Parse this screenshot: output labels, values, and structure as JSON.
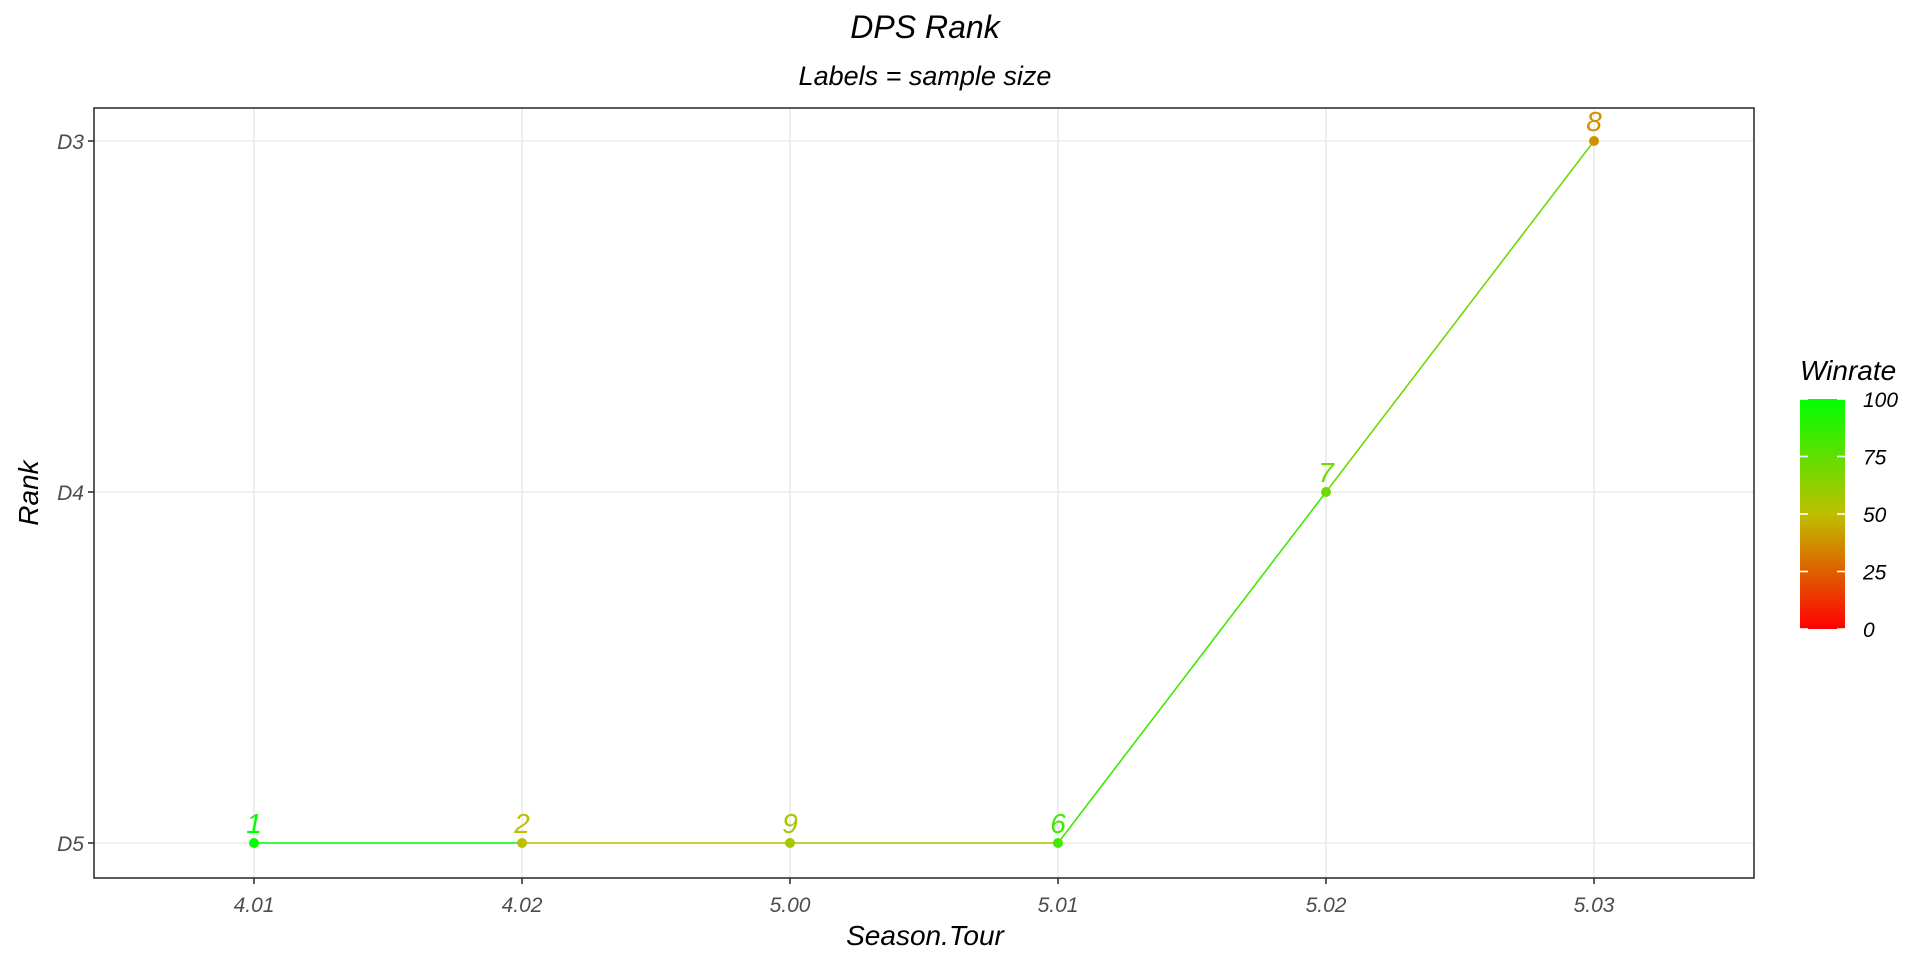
{
  "chart_data": {
    "type": "line",
    "title": "DPS Rank",
    "subtitle": "Labels = sample size",
    "xlabel": "Season.Tour",
    "ylabel": "Rank",
    "x_categories": [
      "4.01",
      "4.02",
      "5.00",
      "5.01",
      "5.02",
      "5.03"
    ],
    "y_categories": [
      "D5",
      "D4",
      "D3"
    ],
    "series": [
      {
        "name": "DPS Rank",
        "points": [
          {
            "x": "4.01",
            "y": "D5",
            "label": "1",
            "winrate": 100
          },
          {
            "x": "4.02",
            "y": "D5",
            "label": "2",
            "winrate": 50
          },
          {
            "x": "5.00",
            "y": "D5",
            "label": "9",
            "winrate": 56
          },
          {
            "x": "5.01",
            "y": "D5",
            "label": "6",
            "winrate": 83
          },
          {
            "x": "5.02",
            "y": "D4",
            "label": "7",
            "winrate": 71
          },
          {
            "x": "5.03",
            "y": "D3",
            "label": "8",
            "winrate": 38
          }
        ]
      }
    ],
    "legend": {
      "title": "Winrate",
      "position": "right",
      "ticks": [
        "100",
        "75",
        "50",
        "25",
        "0"
      ],
      "range": [
        0,
        100
      ],
      "low_color": "#ff0000",
      "high_color": "#00ff00"
    },
    "grid": true
  }
}
